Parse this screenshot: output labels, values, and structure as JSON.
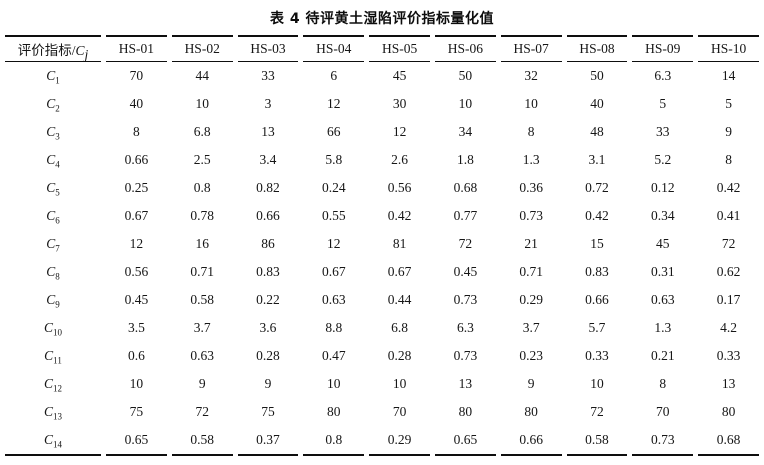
{
  "title": "表 4  待评黄土湿陷评价指标量化值",
  "colors": {
    "background": "#ffffff",
    "text": "#161616",
    "rule": "#0e0e0e"
  },
  "table": {
    "header": {
      "index_prefix": "评价指标/",
      "index_symbol": "C",
      "index_subscript": "j",
      "columns": [
        "HS-01",
        "HS-02",
        "HS-03",
        "HS-04",
        "HS-05",
        "HS-06",
        "HS-07",
        "HS-08",
        "HS-09",
        "HS-10"
      ]
    },
    "rows": [
      {
        "symbol": "C",
        "sub": "1",
        "values": [
          "70",
          "44",
          "33",
          "6",
          "45",
          "50",
          "32",
          "50",
          "6.3",
          "14"
        ]
      },
      {
        "symbol": "C",
        "sub": "2",
        "values": [
          "40",
          "10",
          "3",
          "12",
          "30",
          "10",
          "10",
          "40",
          "5",
          "5"
        ]
      },
      {
        "symbol": "C",
        "sub": "3",
        "values": [
          "8",
          "6.8",
          "13",
          "66",
          "12",
          "34",
          "8",
          "48",
          "33",
          "9"
        ]
      },
      {
        "symbol": "C",
        "sub": "4",
        "values": [
          "0.66",
          "2.5",
          "3.4",
          "5.8",
          "2.6",
          "1.8",
          "1.3",
          "3.1",
          "5.2",
          "8"
        ]
      },
      {
        "symbol": "C",
        "sub": "5",
        "values": [
          "0.25",
          "0.8",
          "0.82",
          "0.24",
          "0.56",
          "0.68",
          "0.36",
          "0.72",
          "0.12",
          "0.42"
        ]
      },
      {
        "symbol": "C",
        "sub": "6",
        "values": [
          "0.67",
          "0.78",
          "0.66",
          "0.55",
          "0.42",
          "0.77",
          "0.73",
          "0.42",
          "0.34",
          "0.41"
        ]
      },
      {
        "symbol": "C",
        "sub": "7",
        "values": [
          "12",
          "16",
          "86",
          "12",
          "81",
          "72",
          "21",
          "15",
          "45",
          "72"
        ]
      },
      {
        "symbol": "C",
        "sub": "8",
        "values": [
          "0.56",
          "0.71",
          "0.83",
          "0.67",
          "0.67",
          "0.45",
          "0.71",
          "0.83",
          "0.31",
          "0.62"
        ]
      },
      {
        "symbol": "C",
        "sub": "9",
        "values": [
          "0.45",
          "0.58",
          "0.22",
          "0.63",
          "0.44",
          "0.73",
          "0.29",
          "0.66",
          "0.63",
          "0.17"
        ]
      },
      {
        "symbol": "C",
        "sub": "10",
        "values": [
          "3.5",
          "3.7",
          "3.6",
          "8.8",
          "6.8",
          "6.3",
          "3.7",
          "5.7",
          "1.3",
          "4.2"
        ]
      },
      {
        "symbol": "C",
        "sub": "11",
        "values": [
          "0.6",
          "0.63",
          "0.28",
          "0.47",
          "0.28",
          "0.73",
          "0.23",
          "0.33",
          "0.21",
          "0.33"
        ]
      },
      {
        "symbol": "C",
        "sub": "12",
        "values": [
          "10",
          "9",
          "9",
          "10",
          "10",
          "13",
          "9",
          "10",
          "8",
          "13"
        ]
      },
      {
        "symbol": "C",
        "sub": "13",
        "values": [
          "75",
          "72",
          "75",
          "80",
          "70",
          "80",
          "80",
          "72",
          "70",
          "80"
        ]
      },
      {
        "symbol": "C",
        "sub": "14",
        "values": [
          "0.65",
          "0.58",
          "0.37",
          "0.8",
          "0.29",
          "0.65",
          "0.66",
          "0.58",
          "0.73",
          "0.68"
        ]
      }
    ]
  }
}
